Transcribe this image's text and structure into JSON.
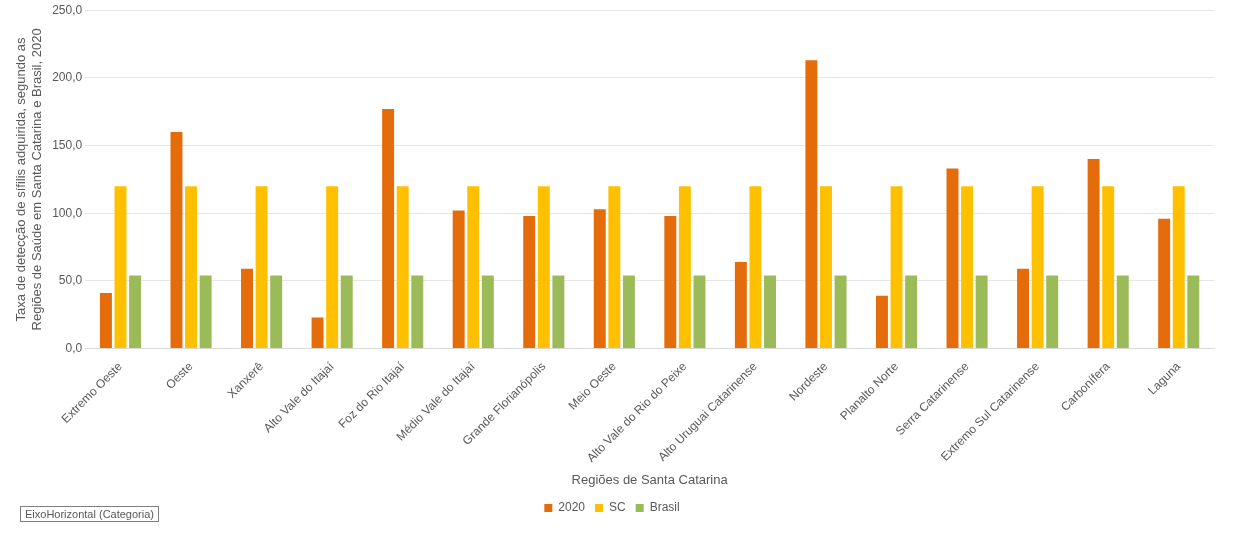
{
  "chart_data": {
    "type": "bar",
    "xlabel": "Regiões de Santa Catarina",
    "ylabel": "Taxa de detecção de sífilis adquirida, segundo as\nRegiões de Saúde em Santa Catarina e Brasil, 2020",
    "categories": [
      "Extremo Oeste",
      "Oeste",
      "Xanxerê",
      "Alto Vale do Itajaí",
      "Foz do Rio Itajaí",
      "Médio Vale do Itajaí",
      "Grande Florianópolis",
      "Meio Oeste",
      "Alto Vale do Rio do Peixe",
      "Alto Uruguai Catarinense",
      "Nordeste",
      "Planalto Norte",
      "Serra Catarinense",
      "Extremo Sul Catarinense",
      "Carbonífera",
      "Laguna"
    ],
    "series": [
      {
        "name": "2020",
        "color": "#e46c0a",
        "values": [
          41,
          160,
          59,
          23,
          177,
          102,
          98,
          103,
          98,
          64,
          213,
          39,
          133,
          59,
          140,
          96
        ]
      },
      {
        "name": "SC",
        "color": "#ffc000",
        "values": [
          120,
          120,
          120,
          120,
          120,
          120,
          120,
          120,
          120,
          120,
          120,
          120,
          120,
          120,
          120,
          120
        ]
      },
      {
        "name": "Brasil",
        "color": "#9bbb59",
        "values": [
          54,
          54,
          54,
          54,
          54,
          54,
          54,
          54,
          54,
          54,
          54,
          54,
          54,
          54,
          54,
          54
        ]
      }
    ],
    "ylim": [
      0,
      250
    ],
    "yticks": [
      {
        "value": 0,
        "label": "0,0"
      },
      {
        "value": 50,
        "label": "50,0"
      },
      {
        "value": 100,
        "label": "100,0"
      },
      {
        "value": 150,
        "label": "150,0"
      },
      {
        "value": 200,
        "label": "200,0"
      },
      {
        "value": 250,
        "label": "250,0"
      }
    ],
    "grid": "y",
    "legend": "bottom",
    "annotations": [
      "EixoHorizontal (Categoria)"
    ]
  }
}
